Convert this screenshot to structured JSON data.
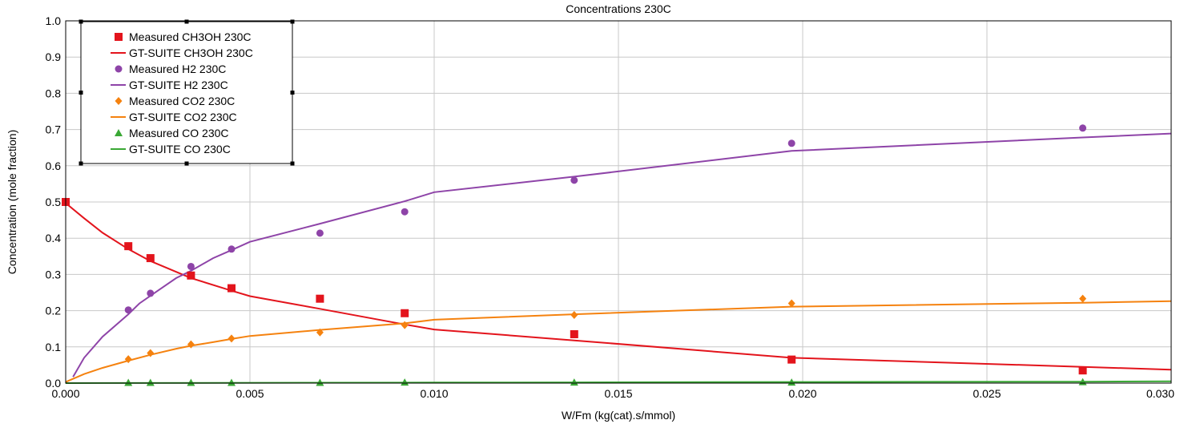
{
  "chart_data": {
    "type": "line",
    "title": "Concentrations 230C",
    "xlabel": "W/Fm (kg(cat).s/mmol)",
    "ylabel": "Concentration (mole fraction)",
    "xlim": [
      0,
      0.03
    ],
    "ylim": [
      0,
      1.0
    ],
    "x_ticks": [
      "0.000",
      "0.005",
      "0.010",
      "0.015",
      "0.020",
      "0.025",
      "0.030"
    ],
    "y_ticks": [
      "0.0",
      "0.1",
      "0.2",
      "0.3",
      "0.4",
      "0.5",
      "0.6",
      "0.7",
      "0.8",
      "0.9",
      "1.0"
    ],
    "grid": true,
    "legend_position": "top-left",
    "series": [
      {
        "name": "Measured CH3OH 230C",
        "kind": "scatter",
        "marker": "square",
        "color": "#e3141c",
        "x": [
          0.0,
          0.0017,
          0.0023,
          0.0034,
          0.0045,
          0.0069,
          0.0092,
          0.0138,
          0.0197,
          0.0276
        ],
        "y": [
          0.5,
          0.378,
          0.345,
          0.297,
          0.262,
          0.233,
          0.193,
          0.135,
          0.065,
          0.035
        ]
      },
      {
        "name": "GT-SUITE CH3OH 230C",
        "kind": "line",
        "color": "#e3141c",
        "x": [
          0.0,
          0.0005,
          0.001,
          0.0017,
          0.0023,
          0.0034,
          0.0045,
          0.005,
          0.0069,
          0.0092,
          0.01,
          0.0138,
          0.0197,
          0.0276,
          0.03
        ],
        "y": [
          0.497,
          0.455,
          0.415,
          0.37,
          0.337,
          0.29,
          0.255,
          0.24,
          0.205,
          0.162,
          0.148,
          0.118,
          0.07,
          0.045,
          0.037
        ]
      },
      {
        "name": "Measured H2 230C",
        "kind": "scatter",
        "marker": "circle",
        "color": "#8e44a8",
        "x": [
          0.0017,
          0.0023,
          0.0034,
          0.0045,
          0.0069,
          0.0092,
          0.0138,
          0.0197,
          0.0276
        ],
        "y": [
          0.202,
          0.248,
          0.322,
          0.37,
          0.414,
          0.473,
          0.56,
          0.662,
          0.704
        ]
      },
      {
        "name": "GT-SUITE H2 230C",
        "kind": "line",
        "color": "#8e44a8",
        "x": [
          0.0002,
          0.0005,
          0.001,
          0.0017,
          0.002,
          0.0025,
          0.003,
          0.0034,
          0.004,
          0.0045,
          0.005,
          0.0069,
          0.0092,
          0.01,
          0.0138,
          0.0197,
          0.0276,
          0.03
        ],
        "y": [
          0.017,
          0.07,
          0.128,
          0.19,
          0.22,
          0.255,
          0.29,
          0.31,
          0.345,
          0.367,
          0.39,
          0.44,
          0.502,
          0.527,
          0.57,
          0.641,
          0.678,
          0.689
        ]
      },
      {
        "name": "Measured CO2 230C",
        "kind": "scatter",
        "marker": "diamond",
        "color": "#f5820f",
        "x": [
          0.0017,
          0.0023,
          0.0034,
          0.0045,
          0.0069,
          0.0092,
          0.0138,
          0.0197,
          0.0276
        ],
        "y": [
          0.066,
          0.083,
          0.107,
          0.123,
          0.14,
          0.16,
          0.188,
          0.22,
          0.233
        ]
      },
      {
        "name": "GT-SUITE CO2 230C",
        "kind": "line",
        "color": "#f5820f",
        "x": [
          0.0,
          0.0005,
          0.001,
          0.0017,
          0.0023,
          0.003,
          0.0034,
          0.004,
          0.0045,
          0.005,
          0.0069,
          0.0092,
          0.01,
          0.0138,
          0.0197,
          0.0276,
          0.03
        ],
        "y": [
          0.003,
          0.025,
          0.042,
          0.062,
          0.078,
          0.095,
          0.103,
          0.113,
          0.122,
          0.13,
          0.147,
          0.165,
          0.175,
          0.19,
          0.211,
          0.222,
          0.226
        ]
      },
      {
        "name": "Measured CO 230C",
        "kind": "scatter",
        "marker": "triangle",
        "color": "#3aa835",
        "x": [
          0.0017,
          0.0023,
          0.0034,
          0.0045,
          0.0069,
          0.0092,
          0.0138,
          0.0197,
          0.0276
        ],
        "y": [
          0.001,
          0.001,
          0.001,
          0.001,
          0.001,
          0.002,
          0.002,
          0.002,
          0.003
        ]
      },
      {
        "name": "GT-SUITE CO 230C",
        "kind": "line",
        "color": "#3aa835",
        "x": [
          0.0,
          0.005,
          0.01,
          0.0138,
          0.0197,
          0.0276,
          0.03
        ],
        "y": [
          0.0,
          0.0008,
          0.0015,
          0.002,
          0.003,
          0.004,
          0.005
        ]
      }
    ]
  }
}
